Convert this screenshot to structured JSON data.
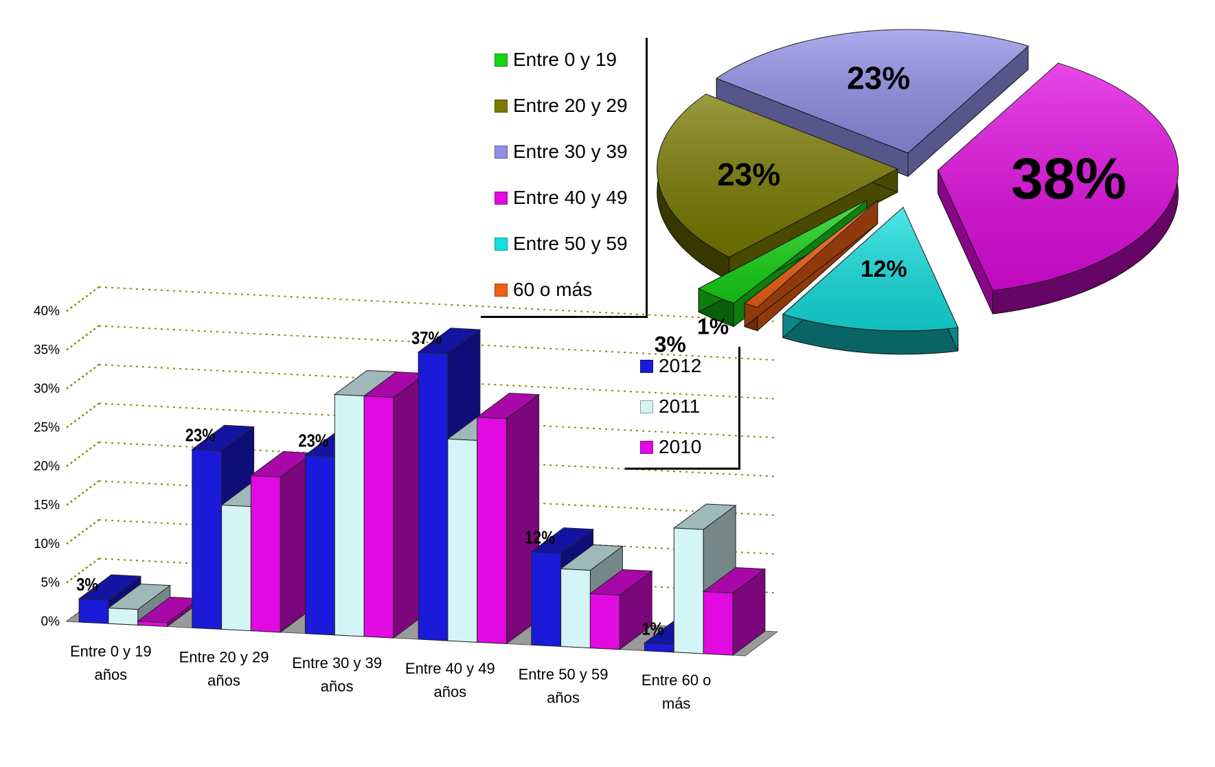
{
  "chart_data": [
    {
      "type": "bar",
      "categories": [
        "Entre 0 y 19 años",
        "Entre 20 y 29 años",
        "Entre 30 y 39 años",
        "Entre 40 y 49 años",
        "Entre 50 y 59 años",
        "Entre 60 o más"
      ],
      "series": [
        {
          "name": "2012",
          "values": [
            3,
            23,
            23,
            37,
            12,
            1
          ],
          "color": "#1a1ad8"
        },
        {
          "name": "2011",
          "values": [
            2,
            16,
            31,
            26,
            10,
            16
          ],
          "color": "#d4f5f5"
        },
        {
          "name": "2010",
          "values": [
            0.5,
            20,
            31,
            29,
            7,
            8
          ],
          "color": "#e10ae1"
        }
      ],
      "data_labels": [
        "3%",
        "23%",
        "23%",
        "37%",
        "12%",
        "1%"
      ],
      "yticks": [
        "0%",
        "5%",
        "10%",
        "15%",
        "20%",
        "25%",
        "30%",
        "35%",
        "40%"
      ],
      "ylim": [
        0,
        40
      ],
      "grid": true,
      "legend_position": "right"
    },
    {
      "type": "pie",
      "labels": [
        "Entre 0 y 19",
        "Entre 20 y 29",
        "Entre 30 y 39",
        "Entre 40 y 49",
        "Entre 50 y 59",
        "60 o más"
      ],
      "values": [
        3,
        23,
        23,
        38,
        12,
        1
      ],
      "value_labels": [
        "3%",
        "23%",
        "23%",
        "38%",
        "12%",
        "1%"
      ],
      "colors": [
        "#14d414",
        "#7a7a00",
        "#8f8fe6",
        "#e10ae1",
        "#14e0e0",
        "#f06014"
      ],
      "legend_position": "left"
    }
  ]
}
